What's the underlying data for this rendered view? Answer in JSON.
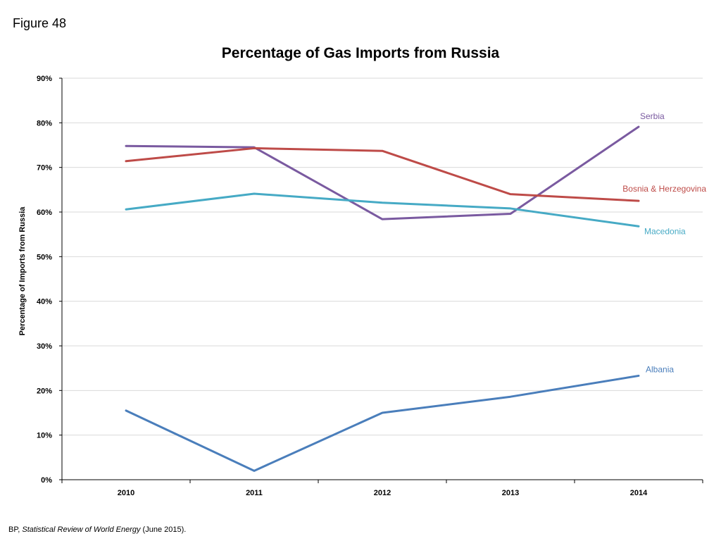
{
  "figure_label": "Figure 48",
  "source": {
    "prefix": "BP, ",
    "title": "Statistical Review of World Energy",
    "suffix": " (June 2015)."
  },
  "chart_data": {
    "type": "line",
    "title": "Percentage of Gas Imports from Russia",
    "xlabel": "",
    "ylabel": "Percentage of Imports from Russia",
    "categories": [
      "2010",
      "2011",
      "2012",
      "2013",
      "2014"
    ],
    "y_ticks": [
      "0%",
      "10%",
      "20%",
      "30%",
      "40%",
      "50%",
      "60%",
      "70%",
      "80%",
      "90%"
    ],
    "ylim": [
      0,
      90
    ],
    "grid": true,
    "series": [
      {
        "name": "Serbia",
        "color": "#7A5AA0",
        "values": [
          74.8,
          74.5,
          58.4,
          59.6,
          79.1
        ]
      },
      {
        "name": "Bosnia & Herzegovina",
        "color": "#BE4B48",
        "values": [
          71.4,
          74.3,
          73.7,
          64.0,
          62.5
        ]
      },
      {
        "name": "Macedonia",
        "color": "#46AAC5",
        "values": [
          60.6,
          64.1,
          62.1,
          60.8,
          56.8
        ]
      },
      {
        "name": "Albania",
        "color": "#4A7EBB",
        "values": [
          15.5,
          2.0,
          15.0,
          18.6,
          23.3
        ]
      }
    ]
  }
}
